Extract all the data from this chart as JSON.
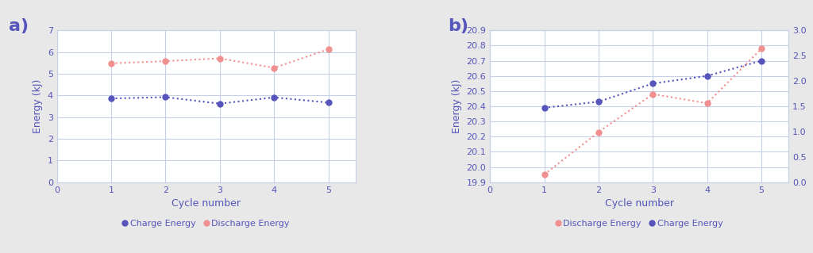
{
  "a": {
    "cycles": [
      1,
      2,
      3,
      4,
      5
    ],
    "charge_energy": [
      3.86,
      3.92,
      3.62,
      3.91,
      3.67
    ],
    "discharge_energy": [
      5.48,
      5.58,
      5.71,
      5.27,
      6.13
    ],
    "ylim": [
      0,
      7
    ],
    "yticks": [
      0,
      1,
      2,
      3,
      4,
      5,
      6,
      7
    ],
    "xlim": [
      0,
      5.5
    ],
    "xticks": [
      0,
      1,
      2,
      3,
      4,
      5
    ],
    "xlabel": "Cycle number",
    "ylabel": "Energy (kJ)",
    "legend": [
      "Charge Energy",
      "Discharge Energy"
    ],
    "label": "a)"
  },
  "b": {
    "cycles": [
      1,
      2,
      3,
      4,
      5
    ],
    "charge_energy": [
      20.39,
      20.43,
      20.55,
      20.6,
      20.7
    ],
    "discharge_energy": [
      19.95,
      20.23,
      20.48,
      20.42,
      20.78
    ],
    "ylim_left": [
      19.9,
      20.9
    ],
    "ylim_right": [
      0,
      3
    ],
    "yticks_left": [
      19.9,
      20.0,
      20.1,
      20.2,
      20.3,
      20.4,
      20.5,
      20.6,
      20.7,
      20.8,
      20.9
    ],
    "yticks_right": [
      0,
      0.5,
      1.0,
      1.5,
      2.0,
      2.5,
      3.0
    ],
    "xlim": [
      0,
      5.5
    ],
    "xticks": [
      0,
      1,
      2,
      3,
      4,
      5
    ],
    "xlabel": "Cycle number",
    "ylabel": "Energy (kJ)",
    "legend": [
      "Discharge Energy",
      "Charge Energy"
    ],
    "label": "b)"
  },
  "charge_color": "#5555bb",
  "discharge_color": "#f09090",
  "marker_size": 6,
  "line_style": "dotted",
  "line_width": 1.5,
  "text_color": "#5555bb",
  "grid_color": "#c8d0e8",
  "plot_bg_color": "#ffffff",
  "fig_bg_color": "#e8e8e8",
  "label_fontsize": 16,
  "tick_fontsize": 8,
  "axis_label_fontsize": 9,
  "legend_fontsize": 8
}
